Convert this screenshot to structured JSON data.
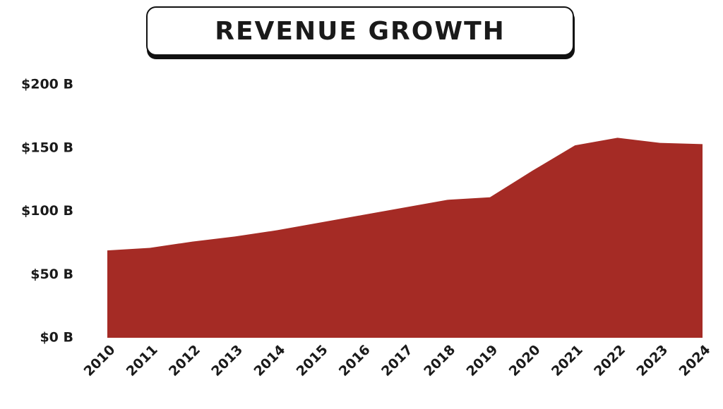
{
  "chart_data": {
    "type": "area",
    "title": "REVENUE GROWTH",
    "categories": [
      "2010",
      "2011",
      "2012",
      "2013",
      "2014",
      "2015",
      "2016",
      "2017",
      "2018",
      "2019",
      "2020",
      "2021",
      "2022",
      "2023",
      "2024"
    ],
    "values": [
      69,
      71,
      76,
      80,
      85,
      91,
      97,
      103,
      109,
      111,
      132,
      152,
      158,
      154,
      153
    ],
    "color": "#a52b25",
    "ylim": [
      0,
      200
    ],
    "yticks": [
      {
        "value": 0,
        "label": "$0 B"
      },
      {
        "value": 50,
        "label": "$50 B"
      },
      {
        "value": 100,
        "label": "$100 B"
      },
      {
        "value": 150,
        "label": "$150 B"
      },
      {
        "value": 200,
        "label": "$200 B"
      }
    ],
    "grid": false
  }
}
